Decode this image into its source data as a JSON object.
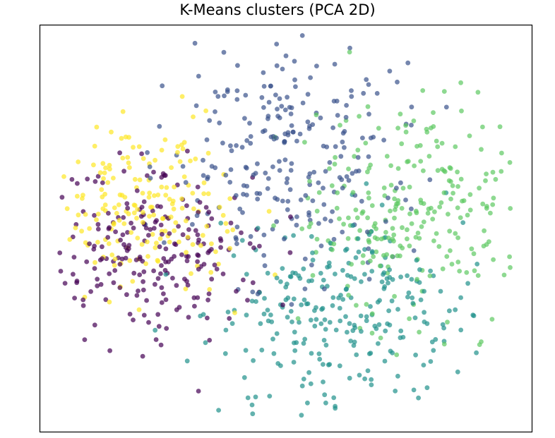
{
  "chart_data": {
    "type": "scatter",
    "title": "K-Means clusters (PCA 2D)",
    "xlabel": "",
    "ylabel": "",
    "xlim": [
      -4.5,
      4.5
    ],
    "ylim": [
      -4.0,
      4.0
    ],
    "axis_ticks": "none",
    "grid": false,
    "legend": "none",
    "marker_alpha": 0.7,
    "clusters": [
      {
        "color": "#440154",
        "label_index": 0,
        "centroid": [
          -2.35,
          -0.55
        ],
        "spread": [
          0.95,
          0.85
        ]
      },
      {
        "color": "#3b528b",
        "label_index": 1,
        "centroid": [
          0.15,
          1.45
        ],
        "spread": [
          1.1,
          1.15
        ]
      },
      {
        "color": "#21918c",
        "label_index": 2,
        "centroid": [
          0.95,
          -1.75
        ],
        "spread": [
          1.2,
          0.85
        ]
      },
      {
        "color": "#5ec962",
        "label_index": 3,
        "centroid": [
          2.25,
          0.35
        ],
        "spread": [
          1.0,
          1.05
        ]
      },
      {
        "color": "#fde725",
        "label_index": 4,
        "centroid": [
          -2.55,
          0.45
        ],
        "spread": [
          0.8,
          0.85
        ]
      }
    ],
    "points": [
      {
        "cluster": 0,
        "x": -3.9,
        "y": -0.9
      },
      {
        "cluster": 0,
        "x": -3.6,
        "y": -0.3
      },
      {
        "cluster": 0,
        "x": -3.3,
        "y": -1.4
      },
      {
        "cluster": 0,
        "x": -3.0,
        "y": -0.6
      },
      {
        "cluster": 0,
        "x": -2.8,
        "y": -1.8
      },
      {
        "cluster": 0,
        "x": -2.6,
        "y": 0.1
      },
      {
        "cluster": 0,
        "x": -2.4,
        "y": -1.1
      },
      {
        "cluster": 0,
        "x": -2.2,
        "y": -0.4
      },
      {
        "cluster": 0,
        "x": -2.0,
        "y": -1.6
      },
      {
        "cluster": 0,
        "x": -1.8,
        "y": 0.2
      },
      {
        "cluster": 0,
        "x": -1.6,
        "y": -0.8
      },
      {
        "cluster": 0,
        "x": -1.4,
        "y": -2.2
      },
      {
        "cluster": 0,
        "x": -1.2,
        "y": -0.2
      },
      {
        "cluster": 0,
        "x": -3.5,
        "y": -1.9
      },
      {
        "cluster": 0,
        "x": -2.9,
        "y": 0.4
      },
      {
        "cluster": 1,
        "x": -1.3,
        "y": 2.3
      },
      {
        "cluster": 1,
        "x": -0.8,
        "y": 1.6
      },
      {
        "cluster": 1,
        "x": -0.4,
        "y": 2.8
      },
      {
        "cluster": 1,
        "x": 0.0,
        "y": 3.4
      },
      {
        "cluster": 1,
        "x": 0.4,
        "y": 2.1
      },
      {
        "cluster": 1,
        "x": 0.8,
        "y": 1.3
      },
      {
        "cluster": 1,
        "x": 1.2,
        "y": 2.6
      },
      {
        "cluster": 1,
        "x": 1.6,
        "y": 1.8
      },
      {
        "cluster": 1,
        "x": -0.2,
        "y": 0.6
      },
      {
        "cluster": 1,
        "x": 0.6,
        "y": 0.1
      },
      {
        "cluster": 1,
        "x": -0.9,
        "y": -0.3
      },
      {
        "cluster": 1,
        "x": 0.3,
        "y": 3.8
      },
      {
        "cluster": 1,
        "x": 1.9,
        "y": 3.1
      },
      {
        "cluster": 1,
        "x": -1.6,
        "y": 3.0
      },
      {
        "cluster": 1,
        "x": 2.1,
        "y": 0.9
      },
      {
        "cluster": 2,
        "x": -1.1,
        "y": -2.0
      },
      {
        "cluster": 2,
        "x": -0.6,
        "y": -2.6
      },
      {
        "cluster": 2,
        "x": -0.1,
        "y": -1.5
      },
      {
        "cluster": 2,
        "x": 0.3,
        "y": -3.1
      },
      {
        "cluster": 2,
        "x": 0.7,
        "y": -2.2
      },
      {
        "cluster": 2,
        "x": 1.1,
        "y": -1.2
      },
      {
        "cluster": 2,
        "x": 1.5,
        "y": -2.8
      },
      {
        "cluster": 2,
        "x": 1.9,
        "y": -1.9
      },
      {
        "cluster": 2,
        "x": 2.3,
        "y": -1.0
      },
      {
        "cluster": 2,
        "x": 2.7,
        "y": -2.4
      },
      {
        "cluster": 2,
        "x": 3.1,
        "y": -1.6
      },
      {
        "cluster": 2,
        "x": 3.5,
        "y": -0.7
      },
      {
        "cluster": 2,
        "x": 0.9,
        "y": -3.5
      },
      {
        "cluster": 2,
        "x": -0.3,
        "y": -3.3
      },
      {
        "cluster": 2,
        "x": 2.0,
        "y": -3.2
      },
      {
        "cluster": 3,
        "x": 0.4,
        "y": 0.6
      },
      {
        "cluster": 3,
        "x": 0.9,
        "y": 1.4
      },
      {
        "cluster": 3,
        "x": 1.3,
        "y": -0.2
      },
      {
        "cluster": 3,
        "x": 1.8,
        "y": 0.8
      },
      {
        "cluster": 3,
        "x": 2.2,
        "y": 1.9
      },
      {
        "cluster": 3,
        "x": 2.6,
        "y": 0.3
      },
      {
        "cluster": 3,
        "x": 3.0,
        "y": 1.2
      },
      {
        "cluster": 3,
        "x": 3.4,
        "y": -0.4
      },
      {
        "cluster": 3,
        "x": 3.8,
        "y": 0.6
      },
      {
        "cluster": 3,
        "x": 4.1,
        "y": 1.3
      },
      {
        "cluster": 3,
        "x": 2.9,
        "y": 2.7
      },
      {
        "cluster": 3,
        "x": 1.5,
        "y": 2.4
      },
      {
        "cluster": 3,
        "x": 2.4,
        "y": -1.0
      },
      {
        "cluster": 3,
        "x": 3.6,
        "y": 2.0
      },
      {
        "cluster": 3,
        "x": -0.2,
        "y": 1.8
      },
      {
        "cluster": 4,
        "x": -3.4,
        "y": 1.1
      },
      {
        "cluster": 4,
        "x": -3.1,
        "y": 0.3
      },
      {
        "cluster": 4,
        "x": -2.8,
        "y": 1.6
      },
      {
        "cluster": 4,
        "x": -2.5,
        "y": 0.7
      },
      {
        "cluster": 4,
        "x": -2.3,
        "y": -0.2
      },
      {
        "cluster": 4,
        "x": -2.1,
        "y": 1.2
      },
      {
        "cluster": 4,
        "x": -1.9,
        "y": 0.4
      },
      {
        "cluster": 4,
        "x": -1.7,
        "y": 2.2
      },
      {
        "cluster": 4,
        "x": -1.5,
        "y": 0.9
      },
      {
        "cluster": 4,
        "x": -3.6,
        "y": 0.0
      },
      {
        "cluster": 4,
        "x": -2.7,
        "y": -0.6
      },
      {
        "cluster": 4,
        "x": -1.9,
        "y": 2.6
      },
      {
        "cluster": 4,
        "x": -1.1,
        "y": 0.1
      },
      {
        "cluster": 4,
        "x": -3.2,
        "y": 1.9
      },
      {
        "cluster": 4,
        "x": -1.4,
        "y": -1.2
      }
    ]
  }
}
